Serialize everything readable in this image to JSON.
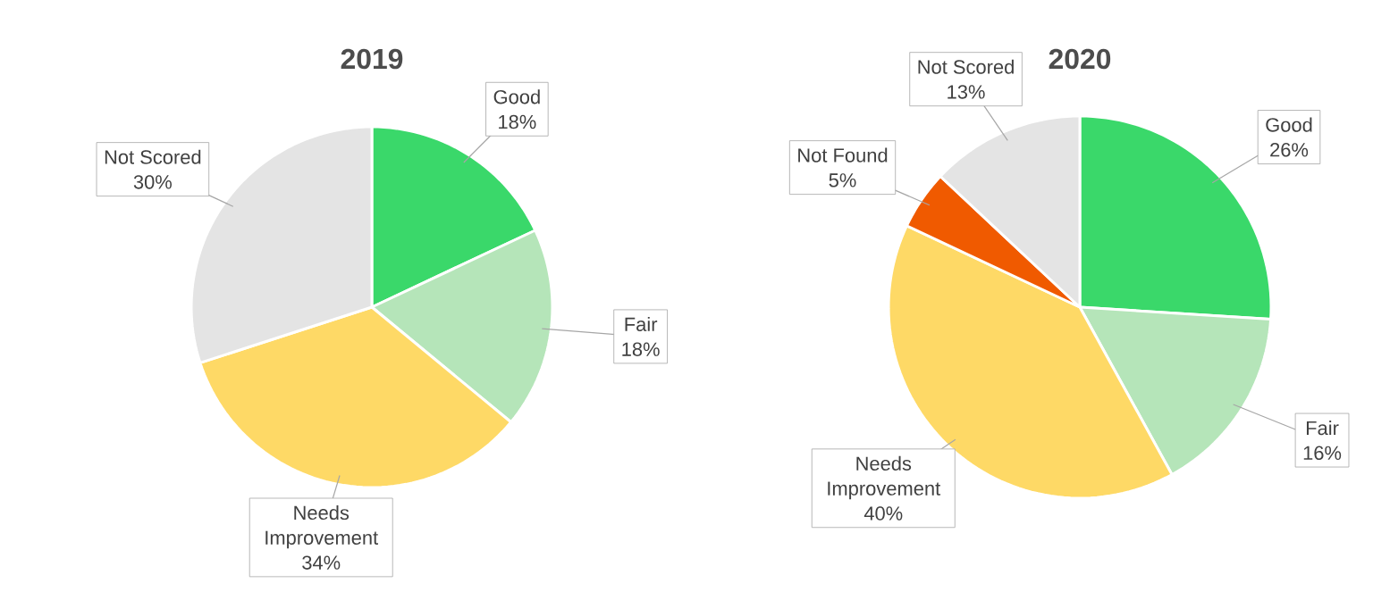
{
  "chart_data": [
    {
      "type": "pie",
      "title": "2019",
      "categories": [
        "Good",
        "Fair",
        "Needs Improvement",
        "Not Scored"
      ],
      "values": [
        18,
        18,
        34,
        30
      ],
      "colors": [
        "#3ad86a",
        "#b5e5b9",
        "#fed966",
        "#e4e4e4"
      ],
      "value_labels": [
        "18%",
        "18%",
        "34%",
        "30%"
      ]
    },
    {
      "type": "pie",
      "title": "2020",
      "categories": [
        "Good",
        "Fair",
        "Needs Improvement",
        "Not Found",
        "Not Scored"
      ],
      "values": [
        26,
        16,
        40,
        5,
        13
      ],
      "colors": [
        "#3ad86a",
        "#b5e5b9",
        "#fed966",
        "#f05a00",
        "#e4e4e4"
      ],
      "value_labels": [
        "26%",
        "16%",
        "40%",
        "5%",
        "13%"
      ]
    }
  ]
}
